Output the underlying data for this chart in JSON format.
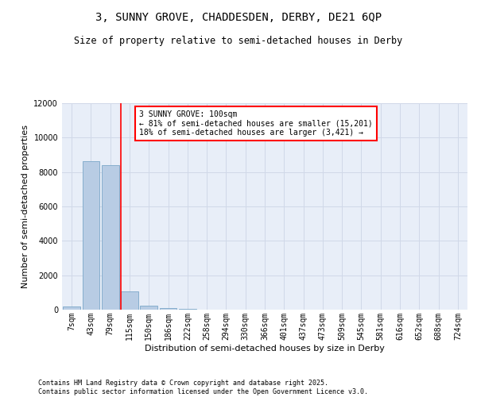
{
  "title_line1": "3, SUNNY GROVE, CHADDESDEN, DERBY, DE21 6QP",
  "title_line2": "Size of property relative to semi-detached houses in Derby",
  "xlabel": "Distribution of semi-detached houses by size in Derby",
  "ylabel": "Number of semi-detached properties",
  "categories": [
    "7sqm",
    "43sqm",
    "79sqm",
    "115sqm",
    "150sqm",
    "186sqm",
    "222sqm",
    "258sqm",
    "294sqm",
    "330sqm",
    "366sqm",
    "401sqm",
    "437sqm",
    "473sqm",
    "509sqm",
    "545sqm",
    "581sqm",
    "616sqm",
    "652sqm",
    "688sqm",
    "724sqm"
  ],
  "values": [
    200,
    8650,
    8400,
    1050,
    250,
    75,
    28,
    5,
    1,
    0,
    0,
    0,
    0,
    0,
    0,
    0,
    0,
    0,
    0,
    0,
    0
  ],
  "bar_color": "#b8cce4",
  "bar_edge_color": "#7ba7c9",
  "vline_x": 2.55,
  "vline_color": "red",
  "annotation_text": "3 SUNNY GROVE: 100sqm\n← 81% of semi-detached houses are smaller (15,201)\n18% of semi-detached houses are larger (3,421) →",
  "annotation_box_color": "white",
  "annotation_box_edge_color": "red",
  "ylim": [
    0,
    12000
  ],
  "yticks": [
    0,
    2000,
    4000,
    6000,
    8000,
    10000,
    12000
  ],
  "grid_color": "#d0d8e8",
  "background_color": "#e8eef8",
  "footer_text": "Contains HM Land Registry data © Crown copyright and database right 2025.\nContains public sector information licensed under the Open Government Licence v3.0.",
  "title_fontsize": 10,
  "subtitle_fontsize": 8.5,
  "label_fontsize": 8,
  "tick_fontsize": 7,
  "annotation_fontsize": 7,
  "footer_fontsize": 6
}
